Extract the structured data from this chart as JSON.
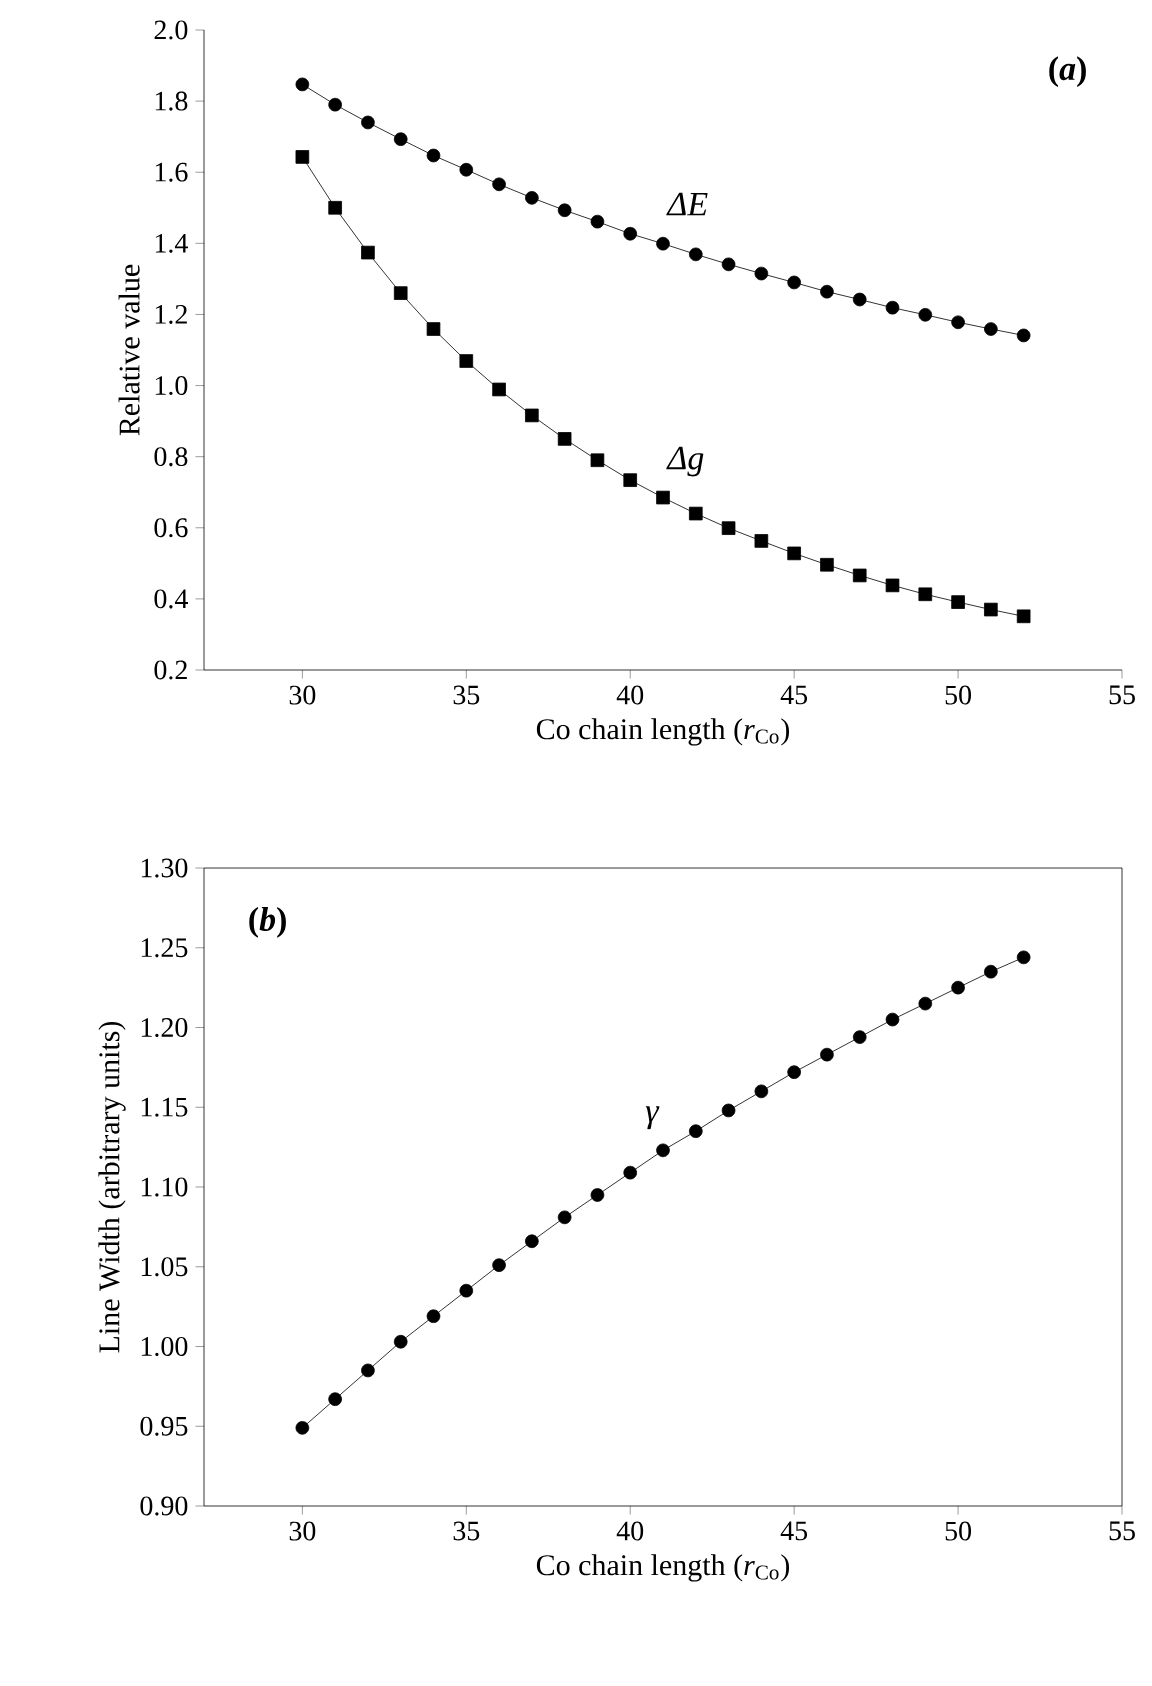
{
  "chart_data": [
    {
      "type": "line",
      "xlabel": "Co chain length (*r*$_{Co}$)",
      "ylabel": "Relative value",
      "annotations": [
        "(*a*)"
      ],
      "xlim": [
        27,
        55
      ],
      "xticks": [
        30,
        35,
        40,
        45,
        50,
        55
      ],
      "ylim": [
        0.2,
        2.0
      ],
      "yticks": [
        0.2,
        0.4,
        0.6,
        0.8,
        {
          "value": 1.0,
          "label": "1.0"
        },
        1.2,
        1.4,
        1.6,
        1.8,
        {
          "value": 2.0,
          "label": "2.0"
        }
      ],
      "x": [
        30,
        31,
        32,
        33,
        34,
        35,
        36,
        37,
        38,
        39,
        40,
        41,
        42,
        43,
        44,
        45,
        46,
        47,
        48,
        49,
        50,
        51,
        52
      ],
      "line_style": "solid",
      "series": [
        {
          "name": "ΔE",
          "color": "#000000",
          "marker": "circle",
          "values": [
            1.847,
            1.79,
            1.74,
            1.693,
            1.647,
            1.607,
            1.566,
            1.528,
            1.493,
            1.461,
            1.427,
            1.399,
            1.369,
            1.341,
            1.315,
            1.29,
            1.264,
            1.242,
            1.219,
            1.199,
            1.178,
            1.159,
            1.141
          ]
        },
        {
          "name": "Δg",
          "color": "#000000",
          "marker": "square",
          "values": [
            1.643,
            1.5,
            1.374,
            1.26,
            1.159,
            1.069,
            0.989,
            0.916,
            0.85,
            0.79,
            0.734,
            0.685,
            0.64,
            0.599,
            0.563,
            0.528,
            0.496,
            0.466,
            0.438,
            0.413,
            0.391,
            0.37,
            0.351
          ]
        }
      ]
    },
    {
      "type": "line",
      "xlabel": "Co chain length (*r*$_{Co}$)",
      "ylabel": "Line Width (arbitrary units)",
      "annotations": [
        "(*b*)"
      ],
      "xlim": [
        27,
        55
      ],
      "xticks": [
        30,
        35,
        40,
        45,
        50,
        55
      ],
      "ylim": [
        0.9,
        1.3
      ],
      "yticks": [
        {
          "value": 0.9,
          "label": "0.90"
        },
        {
          "value": 0.95,
          "label": "0.95"
        },
        {
          "value": 1.0,
          "label": "1.00"
        },
        {
          "value": 1.05,
          "label": "1.05"
        },
        {
          "value": 1.1,
          "label": "1.10"
        },
        {
          "value": 1.15,
          "label": "1.15"
        },
        {
          "value": 1.2,
          "label": "1.20"
        },
        {
          "value": 1.25,
          "label": "1.25"
        },
        {
          "value": 1.3,
          "label": "1.30"
        }
      ],
      "x": [
        30,
        31,
        32,
        33,
        34,
        35,
        36,
        37,
        38,
        39,
        40,
        41,
        42,
        43,
        44,
        45,
        46,
        47,
        48,
        49,
        50,
        51,
        52
      ],
      "line_style": "solid",
      "series": [
        {
          "name": "γ",
          "color": "#000000",
          "marker": "circle",
          "values": [
            0.949,
            0.967,
            0.985,
            1.003,
            1.019,
            1.035,
            1.051,
            1.066,
            1.081,
            1.095,
            1.109,
            1.123,
            1.135,
            1.148,
            1.16,
            1.172,
            1.183,
            1.194,
            1.205,
            1.215,
            1.225,
            1.235,
            1.244
          ]
        }
      ]
    }
  ]
}
